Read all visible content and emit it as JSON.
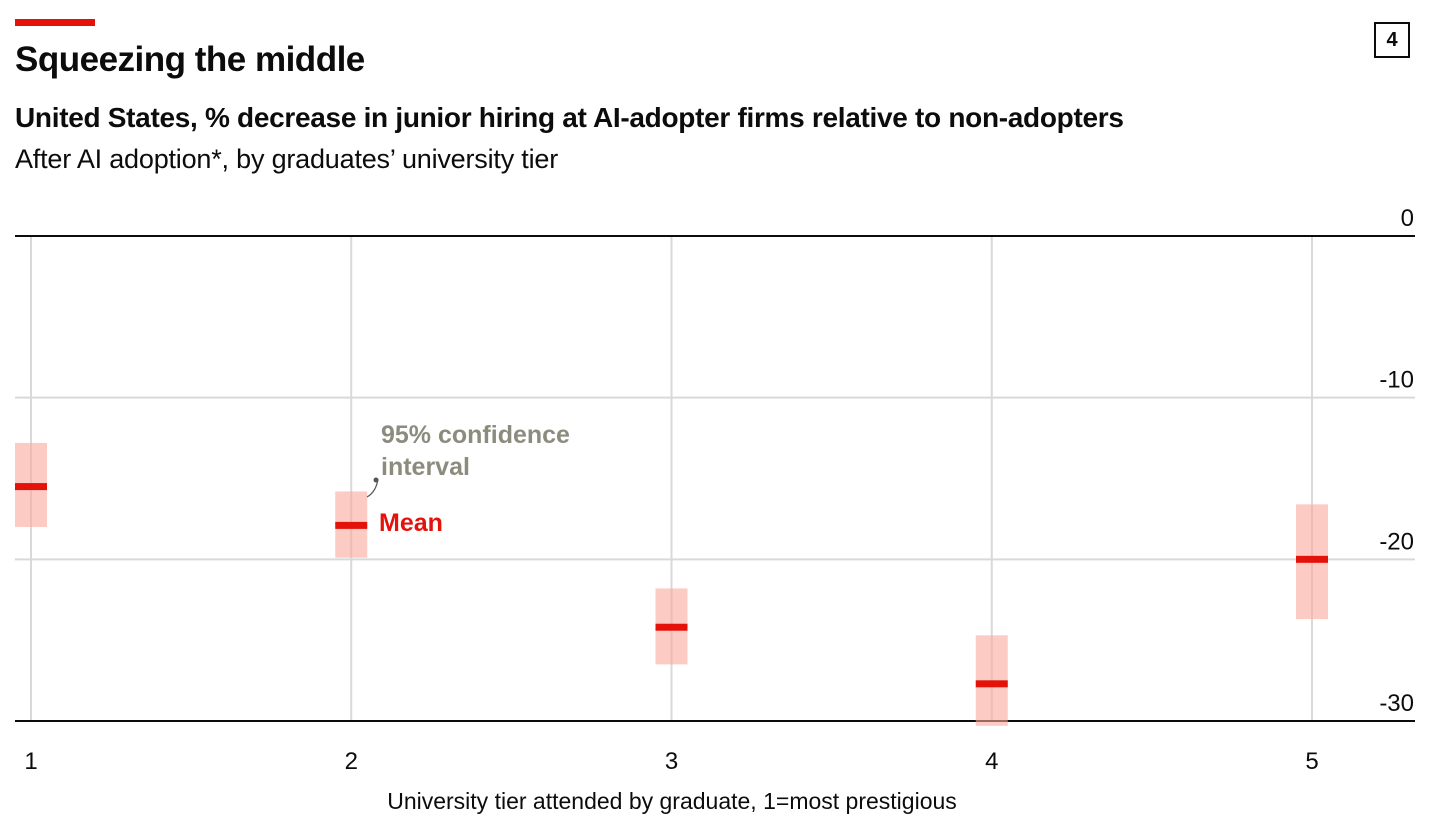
{
  "header": {
    "title": "Squeezing the middle",
    "subtitle": "United States, % decrease in junior hiring at AI-adopter firms relative to non-adopters",
    "note": "After AI adoption*, by graduates’ university tier",
    "chart_number": "4"
  },
  "colors": {
    "accent": "#e3120b",
    "ci_fill": "#f9a99d",
    "annotation": "#8c8c7e"
  },
  "chart_data": {
    "type": "scatter",
    "title": "Squeezing the middle",
    "subtitle": "United States, % decrease in junior hiring at AI-adopter firms relative to non-adopters",
    "xlabel": "University tier attended by graduate, 1=most prestigious",
    "ylabel": "",
    "categories": [
      "1",
      "2",
      "3",
      "4",
      "5"
    ],
    "y_ticks": [
      0,
      -10,
      -20,
      -30
    ],
    "y_tick_labels": [
      "0",
      "-10",
      "-20",
      "-30"
    ],
    "ylim": [
      -30,
      0
    ],
    "grid": true,
    "series": [
      {
        "name": "Mean",
        "values": [
          -15.5,
          -17.9,
          -24.2,
          -27.7,
          -20.0
        ]
      },
      {
        "name": "95% confidence interval",
        "lower": [
          -18.0,
          -19.9,
          -26.5,
          -30.3,
          -23.7
        ],
        "upper": [
          -12.8,
          -15.8,
          -21.8,
          -24.7,
          -16.6
        ]
      }
    ],
    "annotations": {
      "ci_label": "95% confidence interval",
      "mean_label": "Mean"
    }
  }
}
